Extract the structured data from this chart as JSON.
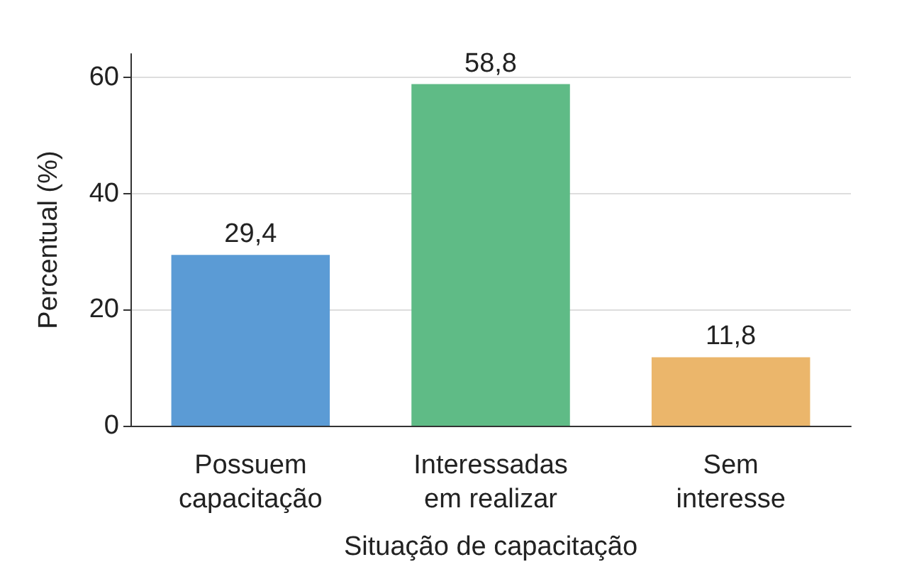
{
  "chart_data": {
    "type": "bar",
    "xlabel": "Situação de capacitação",
    "ylabel": "Percentual (%)",
    "categories": [
      "Possuem\ncapacitação",
      "Interessadas\nem realizar",
      "Sem\ninteresse"
    ],
    "values": [
      29.4,
      58.8,
      11.8
    ],
    "colors": [
      "#5b9bd5",
      "#5fbb86",
      "#ebb66b"
    ],
    "value_labels": [
      "29,4",
      "58,8",
      "11,8"
    ],
    "ylim": [
      0,
      64
    ],
    "yticks": [
      0,
      20,
      40,
      60
    ],
    "grid": "y"
  }
}
